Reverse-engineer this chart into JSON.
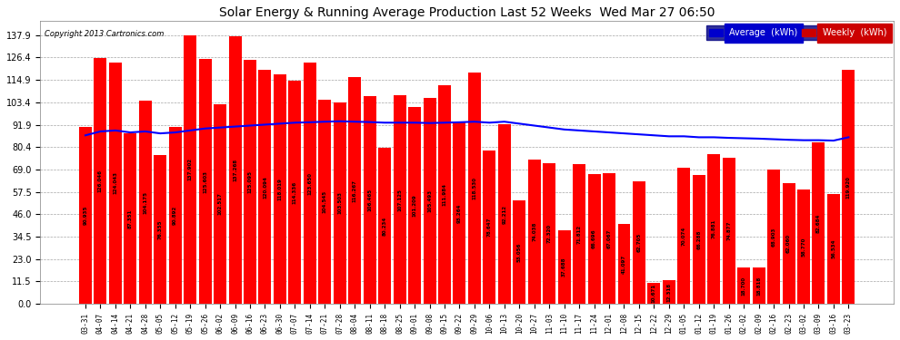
{
  "title": "Solar Energy & Running Average Production Last 52 Weeks  Wed Mar 27 06:50",
  "copyright": "Copyright 2013 Cartronics.com",
  "weekly_values": [
    90.935,
    126.046,
    124.043,
    87.351,
    104.175,
    76.355,
    90.892,
    137.902,
    125.603,
    102.517,
    137.268,
    125.095,
    120.094,
    118.019,
    114.336,
    123.65,
    104.545,
    103.503,
    116.267,
    106.465,
    80.234,
    107.125,
    101.209,
    105.493,
    111.984,
    93.264,
    118.53,
    78.647,
    92.212,
    53.056,
    74.038,
    72.32,
    37.688,
    71.812,
    66.696,
    67.067,
    41.097,
    62.705,
    10.671,
    12.318,
    70.074,
    66.288,
    76.881,
    74.877,
    18.7,
    18.818,
    68.903,
    62.06,
    58.77,
    82.684,
    56.534,
    119.92
  ],
  "labels": [
    "03-31",
    "04-07",
    "04-14",
    "04-21",
    "04-28",
    "05-05",
    "05-12",
    "05-19",
    "05-26",
    "06-02",
    "06-09",
    "06-16",
    "06-23",
    "06-30",
    "07-07",
    "07-14",
    "07-21",
    "07-28",
    "08-04",
    "08-11",
    "08-18",
    "08-25",
    "09-01",
    "09-08",
    "09-15",
    "09-22",
    "09-29",
    "10-06",
    "10-13",
    "10-20",
    "10-27",
    "11-03",
    "11-10",
    "11-17",
    "11-24",
    "12-01",
    "12-08",
    "12-15",
    "12-22",
    "12-29",
    "01-05",
    "01-12",
    "01-19",
    "01-26",
    "02-02",
    "02-09",
    "02-16",
    "02-23",
    "03-02",
    "03-09",
    "03-16",
    "03-23"
  ],
  "avg_values": [
    86.5,
    88.5,
    89.0,
    88.0,
    88.5,
    87.5,
    88.0,
    89.0,
    90.0,
    90.5,
    91.0,
    91.5,
    92.0,
    92.5,
    93.0,
    93.2,
    93.5,
    93.7,
    93.5,
    93.3,
    93.0,
    93.0,
    93.0,
    92.8,
    93.0,
    93.2,
    93.5,
    93.0,
    93.5,
    92.5,
    91.5,
    90.5,
    89.5,
    89.0,
    88.5,
    88.0,
    87.5,
    87.0,
    86.5,
    86.0,
    86.0,
    85.5,
    85.5,
    85.2,
    85.0,
    84.8,
    84.5,
    84.2,
    84.0,
    84.0,
    83.8,
    85.5
  ],
  "bar_color": "#ff0000",
  "avg_line_color": "#0000ff",
  "background_color": "#ffffff",
  "plot_bg_color": "#ffffff",
  "yticks": [
    0.0,
    11.5,
    23.0,
    34.5,
    46.0,
    57.5,
    69.0,
    80.4,
    91.9,
    103.4,
    114.9,
    126.4,
    137.9
  ],
  "legend_avg_color": "#0000cc",
  "legend_weekly_color": "#cc0000",
  "ylim": [
    0,
    145
  ]
}
